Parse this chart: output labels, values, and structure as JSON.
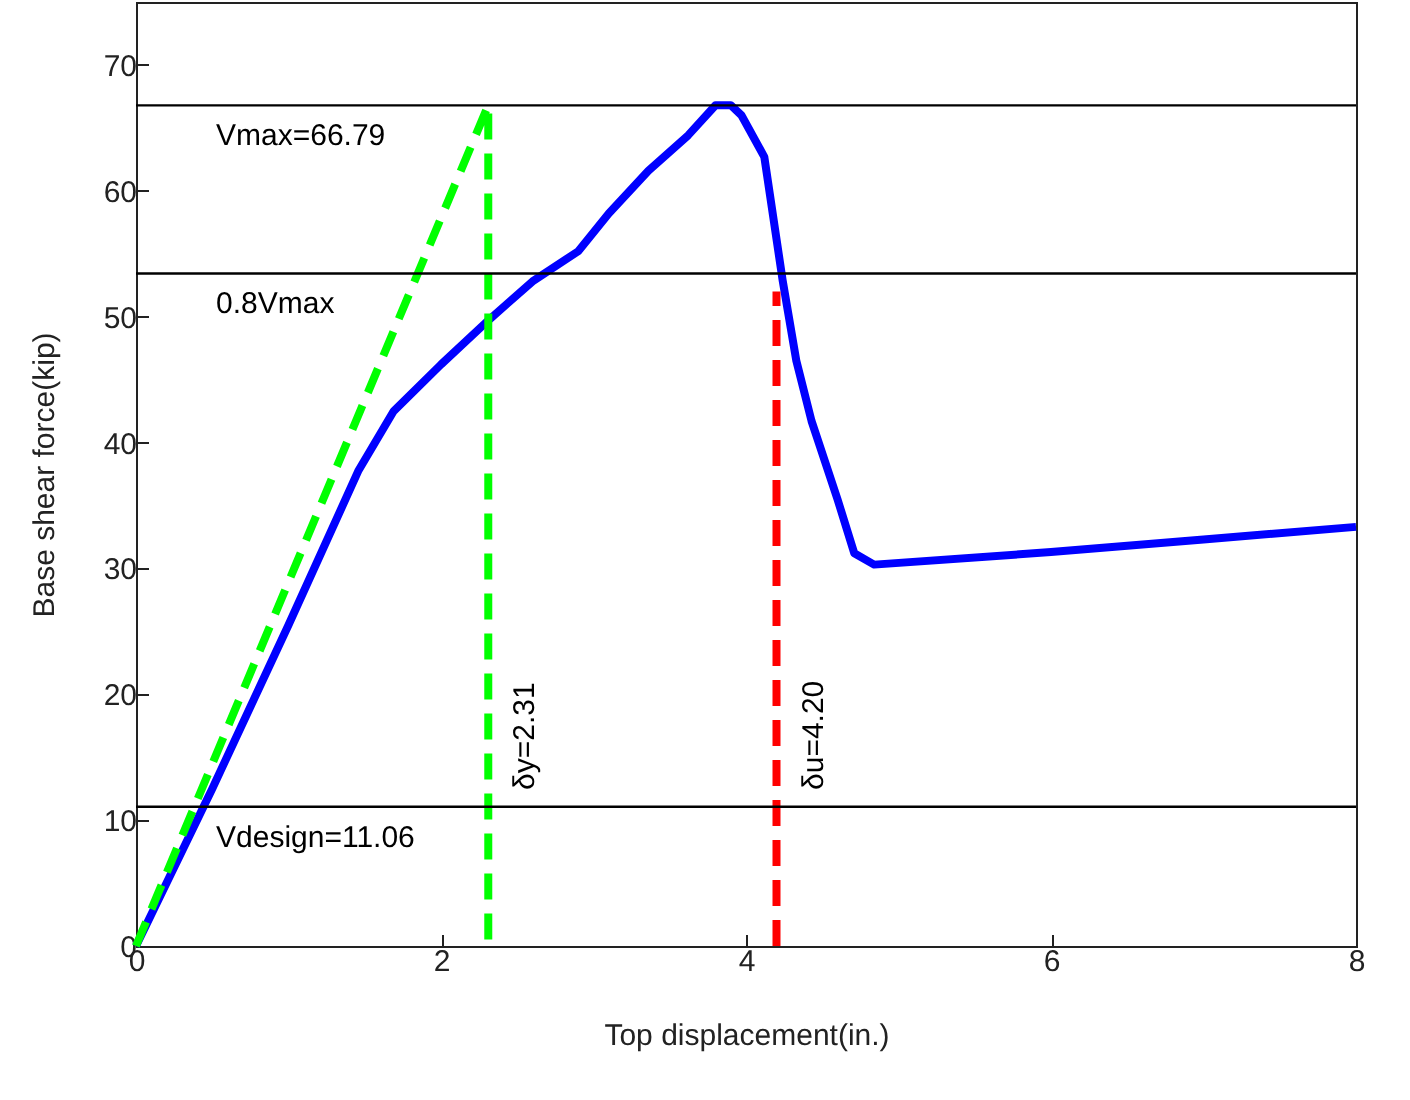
{
  "chart_data": {
    "type": "line",
    "xlabel": "Top displacement(in.)",
    "ylabel": "Base shear force(kip)",
    "xlim": [
      0,
      8
    ],
    "ylim": [
      0,
      75
    ],
    "xticks": [
      0,
      2,
      4,
      6,
      8
    ],
    "yticks": [
      0,
      10,
      20,
      30,
      40,
      50,
      60,
      70
    ],
    "grid": false,
    "series": [
      {
        "color": "#0000ff",
        "line_style": "solid",
        "x": [
          0,
          0.5,
          1.0,
          1.46,
          1.69,
          2.0,
          2.31,
          2.6,
          2.9,
          3.1,
          3.36,
          3.62,
          3.8,
          3.9,
          3.97,
          4.12,
          4.24,
          4.33,
          4.43,
          4.6,
          4.71,
          4.84,
          6.0,
          7.0,
          8.0
        ],
        "values": [
          0,
          12.5,
          25.5,
          37.8,
          42.5,
          46.2,
          49.7,
          52.8,
          55.2,
          58.2,
          61.6,
          64.4,
          66.8,
          66.8,
          66.0,
          62.7,
          52.9,
          46.5,
          41.7,
          35.5,
          31.2,
          30.3,
          31.3,
          32.3,
          33.3
        ]
      },
      {
        "color": "#00ff00",
        "line_style": "dashed",
        "x": [
          0,
          2.31,
          2.31
        ],
        "values": [
          0,
          66.8,
          0
        ]
      },
      {
        "color": "#ff0000",
        "line_style": "dashed",
        "x": [
          4.2,
          4.2
        ],
        "values": [
          0,
          52
        ]
      }
    ],
    "ref_lines": [
      {
        "axis": "y",
        "value": 66.79,
        "label": "Vmax=66.79",
        "color": "#000000"
      },
      {
        "axis": "y",
        "value": 53.43,
        "label": "0.8Vmax",
        "color": "#000000"
      },
      {
        "axis": "y",
        "value": 11.06,
        "label": "Vdesign=11.06",
        "color": "#000000"
      }
    ],
    "annotations": [
      "δy=2.31",
      "δu=4.20"
    ]
  }
}
